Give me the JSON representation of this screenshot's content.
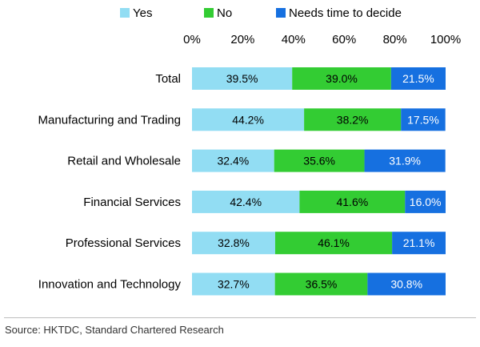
{
  "chart_data": {
    "type": "bar",
    "orientation": "horizontal",
    "stacked": true,
    "title": "",
    "xlabel": "",
    "ylabel": "",
    "xlim": [
      0,
      100
    ],
    "x_ticks": [
      "0%",
      "20%",
      "40%",
      "60%",
      "80%",
      "100%"
    ],
    "categories": [
      "Total",
      "Manufacturing and Trading",
      "Retail and Wholesale",
      "Financial Services",
      "Professional Services",
      "Innovation and Technology"
    ],
    "series": [
      {
        "name": "Yes",
        "color": "#92DDF3",
        "label_color": "#000000",
        "values": [
          39.5,
          44.2,
          32.4,
          42.4,
          32.8,
          32.7
        ],
        "labels": [
          "39.5%",
          "44.2%",
          "32.4%",
          "42.4%",
          "32.8%",
          "32.7%"
        ]
      },
      {
        "name": "No",
        "color": "#33CC33",
        "label_color": "#000000",
        "values": [
          39.0,
          38.2,
          35.6,
          41.6,
          46.1,
          36.5
        ],
        "labels": [
          "39.0%",
          "38.2%",
          "35.6%",
          "41.6%",
          "46.1%",
          "36.5%"
        ]
      },
      {
        "name": "Needs time to decide",
        "color": "#1670E0",
        "label_color": "#ffffff",
        "values": [
          21.5,
          17.5,
          31.9,
          16.0,
          21.1,
          30.8
        ],
        "labels": [
          "21.5%",
          "17.5%",
          "31.9%",
          "16.0%",
          "21.1%",
          "30.8%"
        ]
      }
    ],
    "legend_position": "top",
    "grid": false
  },
  "source": "Source: HKTDC, Standard Chartered Research"
}
